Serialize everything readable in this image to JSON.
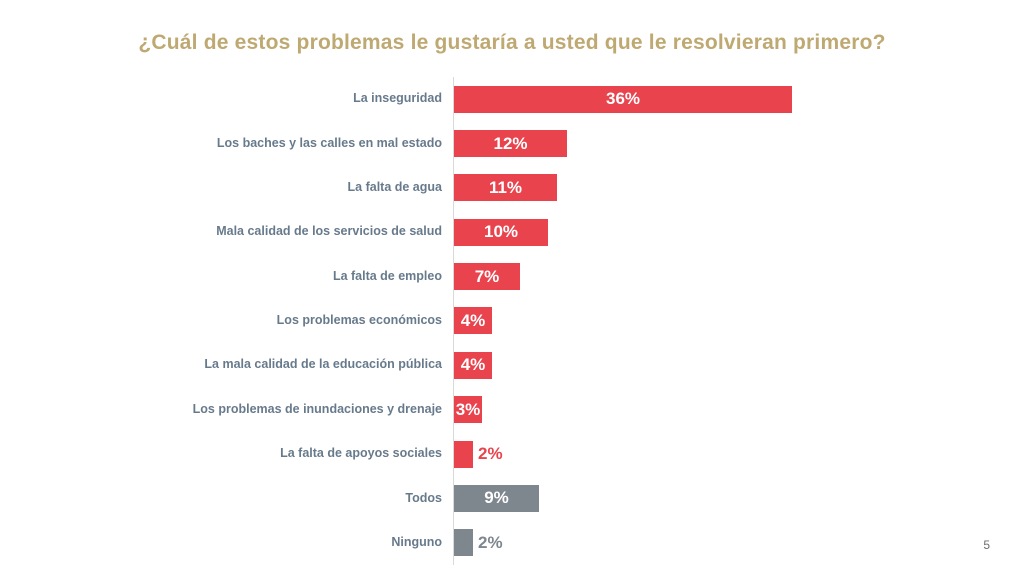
{
  "title": "¿Cuál de estos problemas le gustaría a usted que le resolvieran primero?",
  "page_number": "5",
  "colors": {
    "title": "#BFA972",
    "label": "#677A8C",
    "red": "#E9444E",
    "gray": "#7E868E",
    "value_inside": "#FFFFFF",
    "axis_line": "#D9D9D9",
    "page_number": "#6E6E6E",
    "background": "#FFFFFF"
  },
  "chart_data": {
    "type": "bar",
    "orientation": "horizontal",
    "title": "¿Cuál de estos problemas le gustaría a usted que le resolvieran primero?",
    "value_format": "percent",
    "xlim": [
      0,
      38
    ],
    "grid": false,
    "legend": false,
    "categories": [
      "La inseguridad",
      "Los baches y las calles en mal estado",
      "La falta de agua",
      "Mala calidad de los servicios de salud",
      "La falta de empleo",
      "Los problemas económicos",
      "La mala calidad de la educación pública",
      "Los problemas de inundaciones y drenaje",
      "La falta de apoyos sociales",
      "Todos",
      "Ninguno"
    ],
    "values": [
      36,
      12,
      11,
      10,
      7,
      4,
      4,
      3,
      2,
      9,
      2
    ],
    "items": [
      {
        "label": "La inseguridad",
        "value": 36,
        "display": "36%",
        "color": "red",
        "value_inside": true
      },
      {
        "label": "Los baches y las calles en mal estado",
        "value": 12,
        "display": "12%",
        "color": "red",
        "value_inside": true
      },
      {
        "label": "La falta de agua",
        "value": 11,
        "display": "11%",
        "color": "red",
        "value_inside": true
      },
      {
        "label": "Mala calidad de los servicios de salud",
        "value": 10,
        "display": "10%",
        "color": "red",
        "value_inside": true
      },
      {
        "label": "La falta de empleo",
        "value": 7,
        "display": "7%",
        "color": "red",
        "value_inside": true
      },
      {
        "label": "Los problemas económicos",
        "value": 4,
        "display": "4%",
        "color": "red",
        "value_inside": true
      },
      {
        "label": "La mala calidad de la educación pública",
        "value": 4,
        "display": "4%",
        "color": "red",
        "value_inside": true
      },
      {
        "label": "Los problemas de inundaciones y drenaje",
        "value": 3,
        "display": "3%",
        "color": "red",
        "value_inside": true
      },
      {
        "label": "La falta de apoyos sociales",
        "value": 2,
        "display": "2%",
        "color": "red",
        "value_inside": false
      },
      {
        "label": "Todos",
        "value": 9,
        "display": "9%",
        "color": "gray",
        "value_inside": true
      },
      {
        "label": "Ninguno",
        "value": 2,
        "display": "2%",
        "color": "gray",
        "value_inside": false
      }
    ]
  }
}
